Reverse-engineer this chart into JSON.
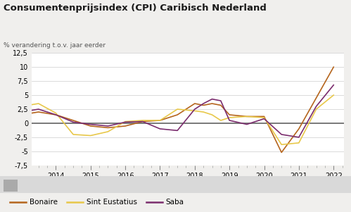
{
  "title": "Consumentenprijsindex (CPI) Caribisch Nederland",
  "ylabel": "% verandering t.o.v. jaar eerder",
  "ylim": [
    -7.5,
    12.5
  ],
  "yticks": [
    -7.5,
    -5,
    -2.5,
    0,
    2.5,
    5,
    7.5,
    10,
    12.5
  ],
  "background_color": "#f0efed",
  "plot_bg_color": "#ffffff",
  "zero_line_color": "#555555",
  "grid_color": "#cccccc",
  "bonaire_color": "#b5651d",
  "sint_color": "#e8c84a",
  "saba_color": "#7B2D6E",
  "x_values": [
    2013.0,
    2013.5,
    2014.0,
    2014.5,
    2015.0,
    2015.5,
    2016.0,
    2016.5,
    2017.0,
    2017.5,
    2018.0,
    2018.25,
    2018.5,
    2018.75,
    2019.0,
    2019.5,
    2020.0,
    2020.5,
    2021.0,
    2021.5,
    2022.0
  ],
  "bonaire": [
    1.5,
    2.0,
    1.5,
    0.5,
    -0.5,
    -0.8,
    -0.5,
    0.3,
    0.5,
    1.5,
    3.5,
    3.2,
    3.5,
    3.2,
    1.5,
    1.2,
    1.2,
    -5.2,
    -1.0,
    4.5,
    10.0
  ],
  "sint_eustatius": [
    3.0,
    3.5,
    1.8,
    -2.0,
    -2.2,
    -1.5,
    0.3,
    0.5,
    0.5,
    2.5,
    2.2,
    2.0,
    1.5,
    0.5,
    1.0,
    1.2,
    1.0,
    -3.8,
    -3.5,
    2.5,
    5.0
  ],
  "saba": [
    2.0,
    2.5,
    1.5,
    0.2,
    -0.2,
    -0.5,
    0.2,
    0.3,
    -1.0,
    -1.3,
    2.5,
    3.5,
    4.3,
    4.0,
    0.5,
    -0.2,
    0.8,
    -2.0,
    -2.5,
    3.0,
    6.8
  ],
  "legend_labels": [
    "Bonaire",
    "Sint Eustatius",
    "Saba"
  ]
}
